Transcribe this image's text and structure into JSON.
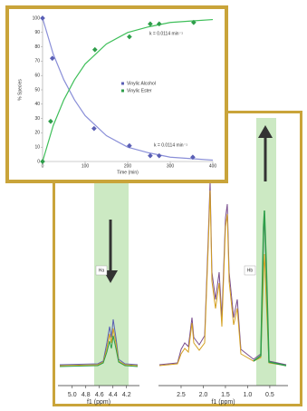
{
  "chart_data": [
    {
      "type": "scatter",
      "xlabel": "Time (min)",
      "ylabel": "% Species",
      "xlim": [
        0,
        400
      ],
      "xticks": [
        0,
        100,
        200,
        300,
        400
      ],
      "ylim": [
        0,
        100
      ],
      "yticks": [
        0,
        10,
        20,
        30,
        40,
        50,
        60,
        70,
        80,
        90,
        100
      ],
      "legend": "center",
      "series": [
        {
          "name": "Vinylic Alcohol",
          "color": "#5a5fb5",
          "x": [
            0,
            23,
            121,
            204,
            253,
            274,
            353
          ],
          "values": [
            100,
            72,
            23,
            11,
            4,
            4,
            3
          ]
        },
        {
          "name": "Vinylic Ester",
          "color": "#2e9e4a",
          "x": [
            0,
            19,
            123,
            204,
            253,
            274,
            355
          ],
          "values": [
            0,
            28,
            78,
            87,
            96,
            96,
            97
          ]
        }
      ],
      "fits": [
        {
          "color": "#8a8fd8",
          "x": [
            0,
            25,
            50,
            75,
            100,
            150,
            200,
            250,
            300,
            350,
            400
          ],
          "values": [
            100,
            75,
            57,
            43,
            32,
            18,
            10,
            6,
            3,
            2,
            1
          ]
        },
        {
          "color": "#3fbf5a",
          "x": [
            0,
            25,
            50,
            75,
            100,
            150,
            200,
            250,
            300,
            350,
            400
          ],
          "values": [
            0,
            25,
            43,
            57,
            68,
            82,
            90,
            94,
            97,
            98,
            99
          ]
        }
      ],
      "annotations": [
        "k = 0.0114 min⁻¹",
        "k = 0.0114 min⁻¹"
      ]
    },
    {
      "type": "spectrum",
      "xlabel": "f1 (ppm)",
      "xlim": [
        5.21,
        4.01
      ],
      "xticks": [
        {
          "value": 5,
          "label": "5.0"
        },
        4.8,
        4.6,
        4.4,
        4.2
      ],
      "annotation": "Ha"
    },
    {
      "type": "spectrum",
      "xlabel": "f1 (ppm)",
      "xlim": [
        3.01,
        0.09
      ],
      "xticks": [
        2.5,
        {
          "value": 2,
          "label": "2.0"
        },
        1.5,
        {
          "value": 1,
          "label": "1.0"
        },
        0.5
      ],
      "annotation": "Hb"
    }
  ]
}
